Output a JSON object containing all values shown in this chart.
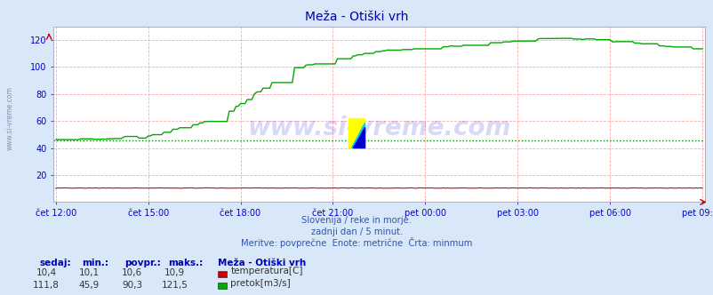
{
  "title": "Meža - Otiški vrh",
  "bg_color": "#d8e8f8",
  "plot_bg_color": "#ffffff",
  "grid_color": "#ffaaaa",
  "ylim": [
    0,
    130
  ],
  "yticks": [
    20,
    40,
    60,
    80,
    100,
    120
  ],
  "tick_color": "#0000cc",
  "title_color": "#0000aa",
  "title_fontsize": 10,
  "subtitle_lines": [
    "Slovenija / reke in morje.",
    "zadnji dan / 5 minut.",
    "Meritve: povprečne  Enote: metrične  Črta: minmum"
  ],
  "x_labels": [
    "čet 12:00",
    "čet 15:00",
    "čet 18:00",
    "čet 21:00",
    "pet 00:00",
    "pet 03:00",
    "pet 06:00",
    "pet 09:00"
  ],
  "total_points": 288,
  "temp_color": "#dd0000",
  "flow_color": "#00aa00",
  "min_line_color": "#008800",
  "min_line_value": 45.9,
  "watermark": "www.si-vreme.com",
  "legend_title": "Meža - Otiški vrh",
  "legend_items": [
    {
      "label": "temperatura[C]",
      "color": "#cc0000"
    },
    {
      "label": "pretok[m3/s]",
      "color": "#00aa00"
    }
  ],
  "stats_headers": [
    "sedaj:",
    "min.:",
    "povpr.:",
    "maks.:"
  ],
  "stats_row1": [
    "10,4",
    "10,1",
    "10,6",
    "10,9"
  ],
  "stats_row2": [
    "111,8",
    "45,9",
    "90,3",
    "121,5"
  ]
}
